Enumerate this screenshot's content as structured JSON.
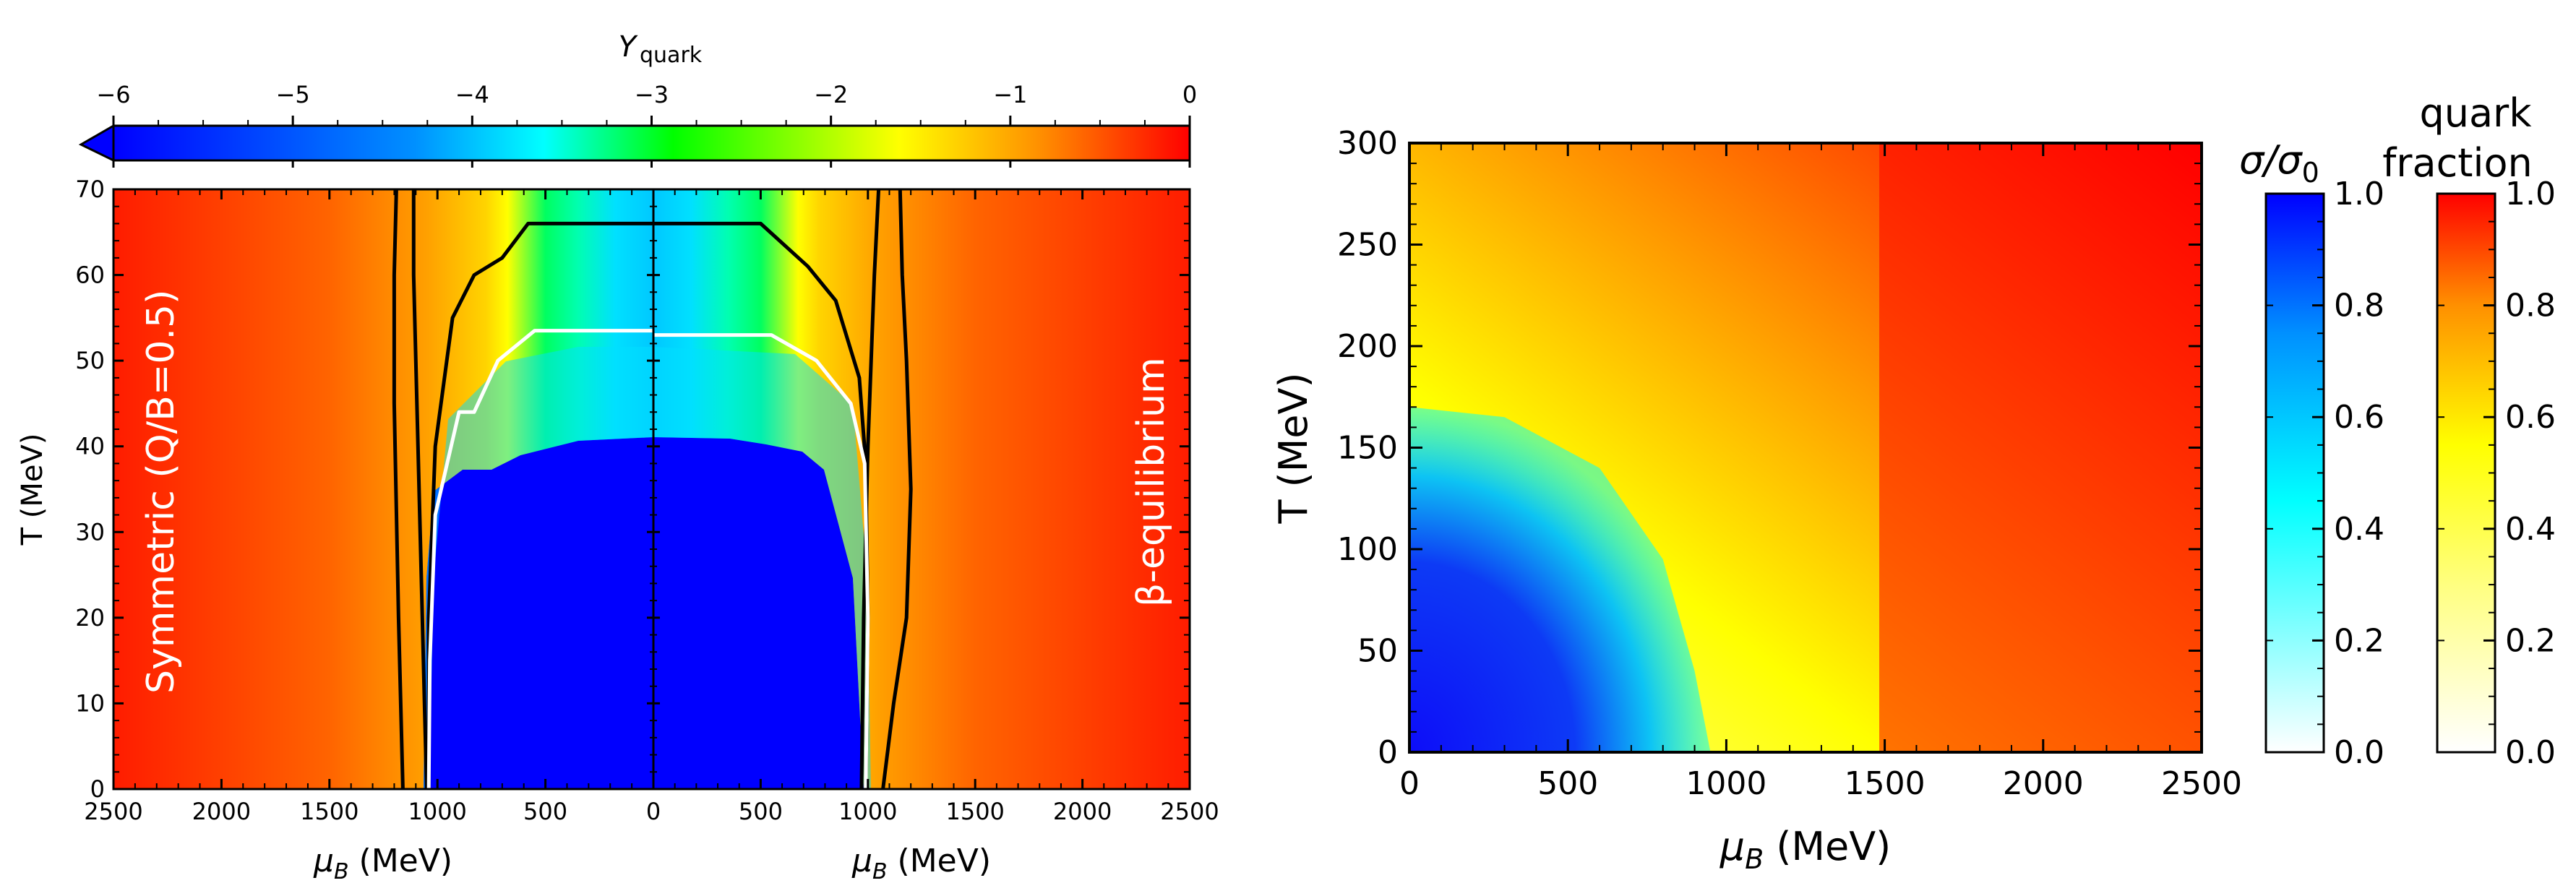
{
  "colors": {
    "blue": "#0000ff",
    "cyan": "#00ffff",
    "green": "#00ff00",
    "yellow": "#ffff00",
    "orange": "#ff8000",
    "red": "#ff0000",
    "contour_dark": "#000000",
    "contour_light": "#ffffff"
  },
  "chart_data": [
    {
      "type": "heatmap",
      "panel": "left",
      "colorbar": {
        "label_symbol": "Y",
        "label_sub": "quark",
        "ticks": [
          "−6",
          "−5",
          "−4",
          "−3",
          "−2",
          "−1",
          "0"
        ],
        "range": [
          -6,
          0
        ],
        "extend": "min",
        "scale": "log10"
      },
      "subpanels": [
        {
          "name": "symmetric",
          "annotation": "Symmetric (Q/B=0.5)",
          "xlabel_symbol": "μ",
          "xlabel_sub": "B",
          "xlabel_unit": " (MeV)",
          "xlim": [
            2500,
            0
          ],
          "xticks": [
            "2500",
            "2000",
            "1500",
            "1000",
            "500",
            "0"
          ],
          "ylabel": "T (MeV)",
          "ylim": [
            0,
            70
          ],
          "yticks": [
            "0",
            "10",
            "20",
            "30",
            "40",
            "50",
            "60",
            "70"
          ],
          "contours": [
            {
              "color": "contour_dark",
              "points": [
                [
                  1160,
                  0
                ],
                [
                  1180,
                  20
                ],
                [
                  1200,
                  45
                ],
                [
                  1200,
                  60
                ],
                [
                  1190,
                  70
                ]
              ]
            },
            {
              "color": "contour_dark",
              "points": [
                [
                  1050,
                  0
                ],
                [
                  1070,
                  20
                ],
                [
                  1090,
                  40
                ],
                [
                  1110,
                  60
                ],
                [
                  1110,
                  70
                ]
              ]
            },
            {
              "color": "contour_dark",
              "points": [
                [
                  1040,
                  0
                ],
                [
                  1040,
                  20
                ],
                [
                  1010,
                  40
                ],
                [
                  930,
                  55
                ],
                [
                  830,
                  60
                ],
                [
                  700,
                  62
                ],
                [
                  580,
                  66
                ],
                [
                  0,
                  66
                ]
              ]
            },
            {
              "color": "contour_light",
              "points": [
                [
                  1040,
                  0
                ],
                [
                  1035,
                  15
                ],
                [
                  1010,
                  32
                ],
                [
                  900,
                  44
                ],
                [
                  830,
                  44
                ],
                [
                  720,
                  50
                ],
                [
                  550,
                  53.5
                ],
                [
                  0,
                  53.5
                ]
              ]
            }
          ]
        },
        {
          "name": "beta",
          "annotation": "β-equilibrium",
          "xlabel_symbol": "μ",
          "xlabel_sub": "B",
          "xlabel_unit": " (MeV)",
          "xlim": [
            0,
            2500
          ],
          "xticks": [
            "0",
            "500",
            "1000",
            "1500",
            "2000",
            "2500"
          ],
          "ylim": [
            0,
            70
          ],
          "contours": [
            {
              "color": "contour_dark",
              "points": [
                [
                  1070,
                  0
                ],
                [
                  1120,
                  10
                ],
                [
                  1180,
                  20
                ],
                [
                  1200,
                  35
                ],
                [
                  1180,
                  50
                ],
                [
                  1160,
                  60
                ],
                [
                  1150,
                  70
                ]
              ]
            },
            {
              "color": "contour_dark",
              "points": [
                [
                  970,
                  0
                ],
                [
                  980,
                  20
                ],
                [
                  1000,
                  40
                ],
                [
                  1030,
                  60
                ],
                [
                  1050,
                  70
                ]
              ]
            },
            {
              "color": "contour_dark",
              "points": [
                [
                  990,
                  0
                ],
                [
                  1000,
                  20
                ],
                [
                  990,
                  38
                ],
                [
                  960,
                  48
                ],
                [
                  850,
                  57
                ],
                [
                  720,
                  61
                ],
                [
                  500,
                  66
                ],
                [
                  0,
                  66
                ]
              ]
            },
            {
              "color": "contour_light",
              "points": [
                [
                  990,
                  0
                ],
                [
                  1000,
                  20
                ],
                [
                  985,
                  38
                ],
                [
                  920,
                  45
                ],
                [
                  760,
                  50
                ],
                [
                  550,
                  53
                ],
                [
                  0,
                  53
                ]
              ]
            }
          ]
        }
      ]
    },
    {
      "type": "heatmap",
      "panel": "right",
      "xlabel_symbol": "μ",
      "xlabel_sub": "B",
      "xlabel_unit": " (MeV)",
      "ylabel": "T (MeV)",
      "xlim": [
        0,
        2500
      ],
      "ylim": [
        0,
        300
      ],
      "xticks": [
        "0",
        "500",
        "1000",
        "1500",
        "2000",
        "2500"
      ],
      "yticks": [
        "0",
        "50",
        "100",
        "150",
        "200",
        "250",
        "300"
      ],
      "chiral_boundary": [
        [
          0,
          170
        ],
        [
          300,
          165
        ],
        [
          600,
          140
        ],
        [
          800,
          95
        ],
        [
          900,
          40
        ],
        [
          950,
          0
        ]
      ],
      "colorbars": [
        {
          "label_symbol": "σ/σ",
          "label_sub": "0",
          "range": [
            0,
            1
          ],
          "ticks": [
            "0.0",
            "0.2",
            "0.4",
            "0.6",
            "0.8",
            "1.0"
          ],
          "cmap": "white-cyan-blue"
        },
        {
          "label_line1": "quark",
          "label_line2": "fraction",
          "range": [
            0,
            1
          ],
          "ticks": [
            "0.0",
            "0.2",
            "0.4",
            "0.6",
            "0.8",
            "1.0"
          ],
          "cmap": "white-yellow-orange-red"
        }
      ]
    }
  ]
}
